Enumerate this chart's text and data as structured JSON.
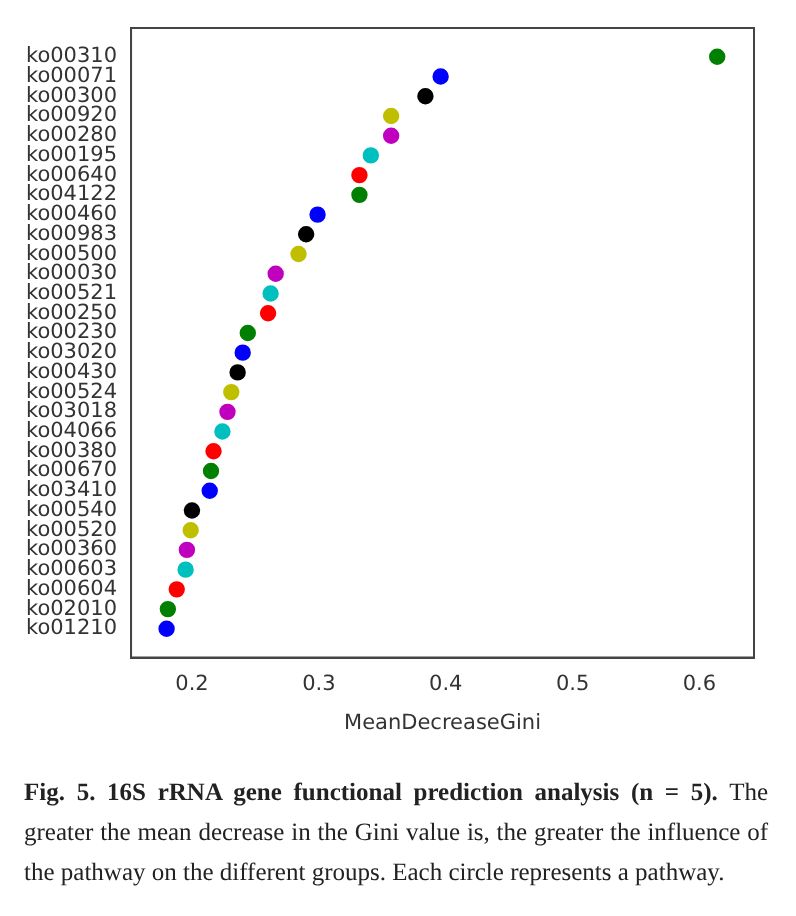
{
  "chart_data": {
    "type": "scatter",
    "orientation": "horizontal",
    "xlabel": "MeanDecreaseGini",
    "categories": [
      "ko00310",
      "ko00071",
      "ko00300",
      "ko00920",
      "ko00280",
      "ko00195",
      "ko00640",
      "ko04122",
      "ko00460",
      "ko00983",
      "ko00500",
      "ko00030",
      "ko00521",
      "ko00250",
      "ko00230",
      "ko03020",
      "ko00430",
      "ko00524",
      "ko03018",
      "ko04066",
      "ko00380",
      "ko00670",
      "ko03410",
      "ko00540",
      "ko00520",
      "ko00360",
      "ko00603",
      "ko00604",
      "ko02010",
      "ko01210"
    ],
    "values": [
      0.614,
      0.396,
      0.384,
      0.357,
      0.357,
      0.341,
      0.332,
      0.332,
      0.299,
      0.29,
      0.284,
      0.266,
      0.262,
      0.26,
      0.244,
      0.24,
      0.236,
      0.231,
      0.228,
      0.224,
      0.217,
      0.215,
      0.214,
      0.2,
      0.199,
      0.196,
      0.195,
      0.188,
      0.181,
      0.18
    ],
    "colors": [
      "#008000",
      "#0000ff",
      "#000000",
      "#bfbf00",
      "#bf00bf",
      "#00bfbf",
      "#ff0000",
      "#008000",
      "#0000ff",
      "#000000",
      "#bfbf00",
      "#bf00bf",
      "#00bfbf",
      "#ff0000",
      "#008000",
      "#0000ff",
      "#000000",
      "#bfbf00",
      "#bf00bf",
      "#00bfbf",
      "#ff0000",
      "#008000",
      "#0000ff",
      "#000000",
      "#bfbf00",
      "#bf00bf",
      "#00bfbf",
      "#ff0000",
      "#008000",
      "#0000ff"
    ],
    "marker": "circle",
    "xlim": [
      0.152,
      0.643
    ],
    "xticks": [
      {
        "value": 0.2,
        "label": "0.2"
      },
      {
        "value": 0.3,
        "label": "0.3"
      },
      {
        "value": 0.4,
        "label": "0.4"
      },
      {
        "value": 0.5,
        "label": "0.5"
      },
      {
        "value": 0.6,
        "label": "0.6"
      }
    ],
    "annotations": [
      "Fig. 5.   16S rRNA gene functional prediction analysis (n = 5).",
      "The greater the mean decrease in the Gini value is, the greater the influence of the pathway on the different groups. Each circle represents a pathway."
    ]
  }
}
